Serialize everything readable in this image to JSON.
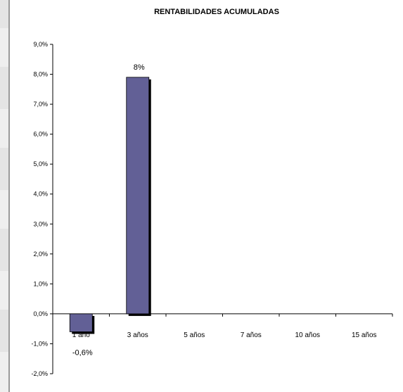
{
  "chart_data": {
    "type": "bar",
    "title": "RENTABILIDADES ACUMULADAS",
    "xlabel": "",
    "ylabel": "",
    "categories": [
      "1 año",
      "3 años",
      "5 años",
      "7 años",
      "10 años",
      "15 años"
    ],
    "values": [
      -0.6,
      7.9,
      null,
      null,
      null,
      null
    ],
    "data_labels": [
      "-0,6%",
      "8%",
      "",
      "",
      "",
      ""
    ],
    "ylim": [
      -2.0,
      9.0
    ],
    "yticks": [
      -2.0,
      -1.0,
      0.0,
      1.0,
      2.0,
      3.0,
      4.0,
      5.0,
      6.0,
      7.0,
      8.0,
      9.0
    ],
    "ytick_labels": [
      "-2,0%",
      "-1,0%",
      "0,0%",
      "1,0%",
      "2,0%",
      "3,0%",
      "4,0%",
      "5,0%",
      "6,0%",
      "7,0%",
      "8,0%",
      "9,0%"
    ],
    "grid": false,
    "legend": "none",
    "bar_color": "#626096",
    "shadow_color": "#000000"
  }
}
